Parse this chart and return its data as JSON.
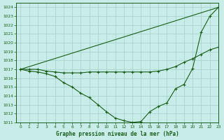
{
  "title": "Graphe pression niveau de la mer (hPa)",
  "bg_color": "#c8ece8",
  "grid_color": "#a8d4cc",
  "line_color": "#1a5c1a",
  "xlim": [
    -0.5,
    23
  ],
  "ylim": [
    1011,
    1024.5
  ],
  "yticks": [
    1011,
    1012,
    1013,
    1014,
    1015,
    1016,
    1017,
    1018,
    1019,
    1020,
    1021,
    1022,
    1023,
    1024
  ],
  "xticks": [
    0,
    1,
    2,
    3,
    4,
    5,
    6,
    7,
    8,
    9,
    10,
    11,
    12,
    13,
    14,
    15,
    16,
    17,
    18,
    19,
    20,
    21,
    22,
    23
  ],
  "line1_x": [
    0,
    23
  ],
  "line1_y": [
    1017,
    1024
  ],
  "line2_x": [
    0,
    1,
    2,
    3,
    4,
    5,
    6,
    7,
    8,
    9,
    10,
    11,
    12,
    13,
    14,
    15,
    16,
    17,
    18,
    19,
    20,
    21,
    22,
    23
  ],
  "line2_y": [
    1017,
    1017,
    1017,
    1016.8,
    1016.7,
    1016.6,
    1016.6,
    1016.6,
    1016.7,
    1016.7,
    1016.7,
    1016.7,
    1016.7,
    1016.7,
    1016.7,
    1016.7,
    1016.8,
    1017.0,
    1017.3,
    1017.8,
    1018.2,
    1018.7,
    1019.2,
    1019.5
  ],
  "line3_x": [
    0,
    1,
    2,
    3,
    4,
    5,
    6,
    7,
    8,
    9,
    10,
    11,
    12,
    13,
    14,
    15,
    16,
    17,
    18,
    19,
    20,
    21,
    22,
    23
  ],
  "line3_y": [
    1017,
    1016.8,
    1016.7,
    1016.5,
    1016.2,
    1015.5,
    1015.0,
    1014.3,
    1013.8,
    1013.0,
    1012.2,
    1011.5,
    1011.2,
    1011.0,
    1011.1,
    1012.2,
    1012.8,
    1013.2,
    1014.8,
    1015.3,
    1017.1,
    1021.2,
    1023.0,
    1024.0
  ]
}
